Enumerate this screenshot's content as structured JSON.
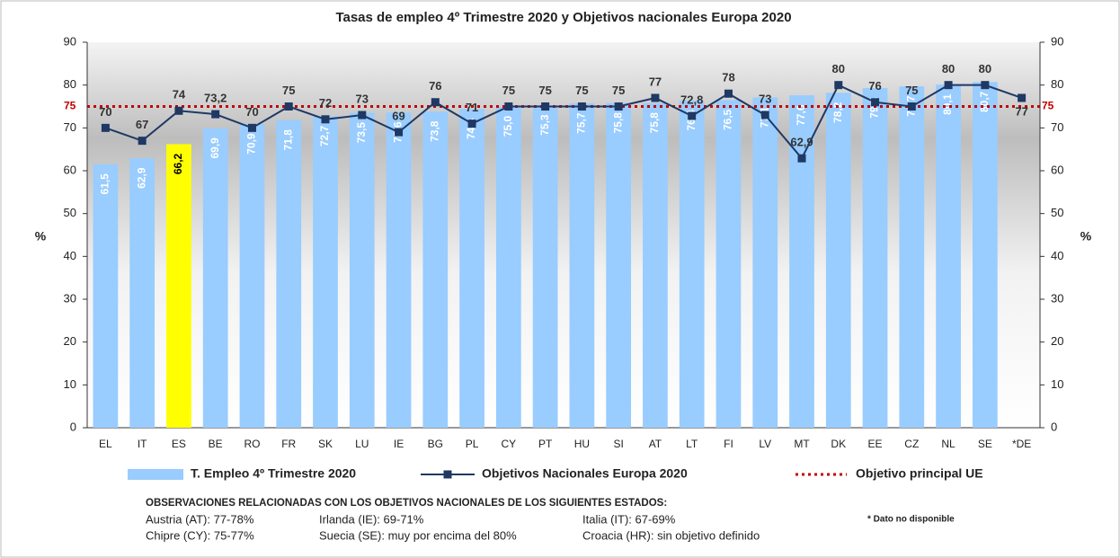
{
  "chart_data": {
    "type": "bar_line",
    "title": "Tasas de empleo  4º Trimestre 2020 y Objetivos nacionales Europa 2020",
    "ylabel": "%",
    "y2label": "%",
    "categories": [
      "EL",
      "IT",
      "ES",
      "BE",
      "RO",
      "FR",
      "SK",
      "LU",
      "IE",
      "BG",
      "PL",
      "CY",
      "PT",
      "HU",
      "SI",
      "AT",
      "LT",
      "FI",
      "LV",
      "MT",
      "DK",
      "EE",
      "CZ",
      "NL",
      "SE",
      "*DE"
    ],
    "series": [
      {
        "name": "T. Empleo 4º Trimestre 2020",
        "type": "bar",
        "color": "#99ccff",
        "colors": [
          "#99ccff",
          "#99ccff",
          "#ffff00",
          "#99ccff",
          "#99ccff",
          "#99ccff",
          "#99ccff",
          "#99ccff",
          "#99ccff",
          "#99ccff",
          "#99ccff",
          "#99ccff",
          "#99ccff",
          "#99ccff",
          "#99ccff",
          "#99ccff",
          "#99ccff",
          "#99ccff",
          "#99ccff",
          "#99ccff",
          "#99ccff",
          "#99ccff",
          "#99ccff",
          "#99ccff",
          "#99ccff",
          "#99ccff"
        ],
        "values": [
          61.5,
          62.9,
          66.2,
          69.9,
          70.9,
          71.8,
          72.7,
          73.5,
          73.6,
          73.8,
          74.4,
          75.0,
          75.3,
          75.7,
          75.8,
          75.8,
          76.4,
          76.5,
          77.1,
          77.6,
          78.2,
          79.3,
          79.7,
          80.1,
          80.7,
          null
        ],
        "value_labels": [
          "61,5",
          "62,9",
          "66,2",
          "69,9",
          "70,9",
          "71,8",
          "72,7",
          "73,5",
          "73,6",
          "73,8",
          "74,4",
          "75,0",
          "75,3",
          "75,7",
          "75,8",
          "75,8",
          "76,4",
          "76,5",
          "77,1",
          "77,6",
          "78,2",
          "79,3",
          "79,7",
          "80,1",
          "80,7",
          null
        ]
      },
      {
        "name": "Objetivos Nacionales Europa 2020",
        "type": "line",
        "axis": "y2",
        "color": "#1f3864",
        "values": [
          70,
          67,
          74,
          73.2,
          70,
          75,
          72,
          73,
          69,
          76,
          71,
          75,
          75,
          75,
          75,
          77,
          72.8,
          78,
          73,
          62.9,
          80,
          76,
          75,
          80,
          80,
          77
        ],
        "value_labels": [
          "70",
          "67",
          "74",
          "73,2",
          "70",
          "75",
          "72",
          "73",
          "69",
          "76",
          "71",
          "75",
          "75",
          "75",
          "75",
          "77",
          "72,8",
          "78",
          "73",
          "62,9",
          "80",
          "76",
          "75",
          "80",
          "80",
          "77"
        ]
      }
    ],
    "target": {
      "name": "Objetivo principal UE",
      "value": 75,
      "color": "#c00000"
    },
    "ylim": [
      0,
      90
    ],
    "yticks": [
      0,
      10,
      20,
      30,
      40,
      50,
      60,
      70,
      80,
      90
    ],
    "y2lim": [
      0,
      90
    ],
    "y2ticks": [
      0,
      10,
      20,
      30,
      40,
      50,
      60,
      70,
      80,
      90
    ],
    "notes": {
      "heading": "OBSERVACIONES RELACIONADAS CON LOS OBJETIVOS NACIONALES DE LOS SIGUIENTES ESTADOS:",
      "items": [
        "Austria (AT): 77-78%",
        "Irlanda (IE): 69-71%",
        "Italia (IT): 67-69%",
        "Chipre (CY): 75-77%",
        "Suecia (SE): muy por encima del 80%",
        "Croacia (HR): sin objetivo definido"
      ],
      "footnote": "* Dato no disponible"
    }
  }
}
